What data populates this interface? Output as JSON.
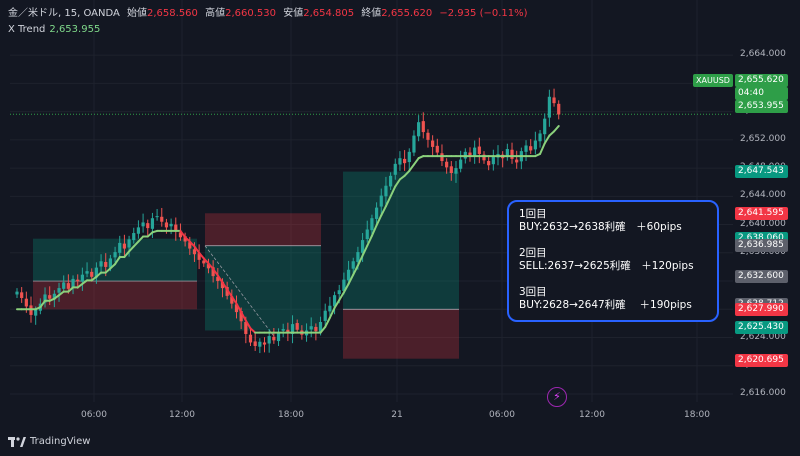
{
  "legend": {
    "symbol": "金／米ドル, 15, OANDA",
    "open_label": "始値",
    "open": "2,658.560",
    "high_label": "高値",
    "high": "2,660.530",
    "low_label": "安値",
    "low": "2,654.805",
    "close_label": "終値",
    "close": "2,655.620",
    "change": "−2.935 (−0.11%)",
    "trend_name": "X Trend",
    "trend_value": "2,653.955"
  },
  "symbol_tag": "XAUUSD",
  "price_tags": [
    {
      "text": "2,655.620",
      "sub": "04:40",
      "price": 2655.62,
      "color": "#2e9e48"
    },
    {
      "text": "2,653.955",
      "price": 2653.955,
      "color": "#2e9e48"
    },
    {
      "text": "2,647.543",
      "price": 2647.543,
      "color": "#089981"
    },
    {
      "text": "2,641.595",
      "price": 2641.595,
      "color": "#f23645"
    },
    {
      "text": "2,638.060",
      "price": 2638.06,
      "color": "#089981"
    },
    {
      "text": "2,636.985",
      "price": 2636.985,
      "color": "#5d606b"
    },
    {
      "text": "2,632.600",
      "price": 2632.6,
      "color": "#5d606b"
    },
    {
      "text": "2,628.712",
      "price": 2628.712,
      "color": "#5d606b"
    },
    {
      "text": "2,627.990",
      "price": 2627.99,
      "color": "#f23645"
    },
    {
      "text": "2,625.430",
      "price": 2625.43,
      "color": "#089981"
    },
    {
      "text": "2,620.695",
      "price": 2620.695,
      "color": "#f23645"
    }
  ],
  "note": {
    "l1": "1回目",
    "l2": "BUY:2632→2638利確　＋60pips",
    "l3": "2回目",
    "l4": "SELL:2637→2625利確　＋120pips",
    "l5": "3回目",
    "l6": "BUY:2628→2647利確　 ＋190pips"
  },
  "footer": {
    "brand": "TradingView"
  },
  "chart_data": {
    "type": "candlestick",
    "symbol": "金／米ドル, 15, OANDA",
    "ylim": [
      2614,
      2666
    ],
    "y_ticks": [
      2616,
      2620,
      2624,
      2628,
      2632,
      2636,
      2640,
      2644,
      2648,
      2652,
      2656,
      2660,
      2664
    ],
    "y_tick_labels": [
      "2,616.000",
      "2,620.000",
      "2,624.000",
      "2,628.000",
      "2,632.000",
      "2,636.000",
      "2,640.000",
      "2,644.000",
      "2,648.000",
      "2,652.000",
      "2,656.000",
      "2,660.000",
      "2,664.000"
    ],
    "x_labels": [
      "06:00",
      "12:00",
      "18:00",
      "21",
      "06:00",
      "12:00",
      "18:00"
    ],
    "close_series": [
      2630.5,
      2629.6,
      2628.4,
      2627.2,
      2627.9,
      2628.8,
      2630.1,
      2629.5,
      2630.2,
      2631.0,
      2631.8,
      2630.9,
      2632.3,
      2632.0,
      2632.9,
      2633.4,
      2632.6,
      2633.9,
      2634.8,
      2634.0,
      2635.2,
      2636.1,
      2637.4,
      2636.6,
      2637.9,
      2638.8,
      2639.6,
      2640.3,
      2639.5,
      2640.9,
      2641.2,
      2640.4,
      2639.6,
      2640.1,
      2639.0,
      2638.2,
      2637.6,
      2636.6,
      2635.8,
      2635.0,
      2634.5,
      2633.8,
      2632.7,
      2632.0,
      2631.0,
      2629.9,
      2628.8,
      2627.6,
      2626.3,
      2624.5,
      2623.3,
      2622.8,
      2623.4,
      2623.0,
      2624.2,
      2623.6,
      2624.8,
      2625.2,
      2624.6,
      2625.9,
      2625.1,
      2624.4,
      2625.0,
      2625.6,
      2624.9,
      2626.2,
      2627.8,
      2628.5,
      2630.0,
      2630.7,
      2632.2,
      2633.6,
      2634.8,
      2636.1,
      2637.8,
      2639.3,
      2640.9,
      2642.4,
      2644.1,
      2645.5,
      2646.9,
      2648.6,
      2649.4,
      2648.7,
      2650.3,
      2652.6,
      2654.5,
      2653.1,
      2652.0,
      2651.0,
      2650.2,
      2649.0,
      2648.1,
      2647.3,
      2648.0,
      2649.2,
      2650.3,
      2649.8,
      2650.9,
      2650.0,
      2649.1,
      2648.4,
      2649.6,
      2650.0,
      2649.4,
      2650.7,
      2649.3,
      2648.8,
      2650.4,
      2651.2,
      2650.5,
      2651.9,
      2652.9,
      2655.0,
      2658.1,
      2657.2,
      2655.6
    ],
    "x_trend": [
      2628.0,
      2628.0,
      2628.0,
      2628.0,
      2628.0,
      2628.3,
      2629.2,
      2629.2,
      2629.5,
      2630.0,
      2630.5,
      2630.5,
      2631.1,
      2631.1,
      2631.6,
      2632.1,
      2632.1,
      2632.6,
      2633.2,
      2633.2,
      2633.8,
      2634.4,
      2635.4,
      2635.4,
      2636.2,
      2636.9,
      2637.6,
      2638.3,
      2638.3,
      2638.9,
      2639.1,
      2639.1,
      2639.1,
      2639.1,
      2639.1,
      2639.1,
      2638.2,
      2637.6,
      2636.9,
      2636.0,
      2635.2,
      2634.5,
      2633.7,
      2632.8,
      2631.8,
      2630.8,
      2629.8,
      2628.8,
      2627.6,
      2626.4,
      2625.3,
      2624.7,
      2624.7,
      2624.7,
      2624.7,
      2624.7,
      2624.7,
      2624.7,
      2624.7,
      2624.7,
      2624.7,
      2624.7,
      2624.7,
      2624.7,
      2624.7,
      2624.7,
      2625.5,
      2626.8,
      2628.2,
      2629.3,
      2630.4,
      2631.6,
      2632.9,
      2634.2,
      2635.6,
      2637.0,
      2638.4,
      2639.9,
      2641.3,
      2642.6,
      2644.0,
      2645.4,
      2646.4,
      2646.9,
      2647.6,
      2648.5,
      2649.4,
      2649.7,
      2649.7,
      2649.7,
      2649.7,
      2649.7,
      2649.7,
      2649.7,
      2649.7,
      2649.7,
      2649.7,
      2649.7,
      2649.7,
      2649.7,
      2649.7,
      2649.7,
      2649.7,
      2649.7,
      2649.7,
      2649.7,
      2649.7,
      2649.7,
      2649.7,
      2649.7,
      2649.7,
      2649.7,
      2650.0,
      2651.5,
      2652.6,
      2653.2,
      2653.955
    ],
    "trade_zones": [
      {
        "side": "BUY",
        "entry": 2632,
        "take_profit": 2638,
        "stop": 2628
      },
      {
        "side": "SELL",
        "entry": 2637,
        "take_profit": 2625,
        "stop": 2641.6
      },
      {
        "side": "BUY",
        "entry": 2628,
        "take_profit": 2647.5,
        "stop": 2621
      }
    ]
  }
}
